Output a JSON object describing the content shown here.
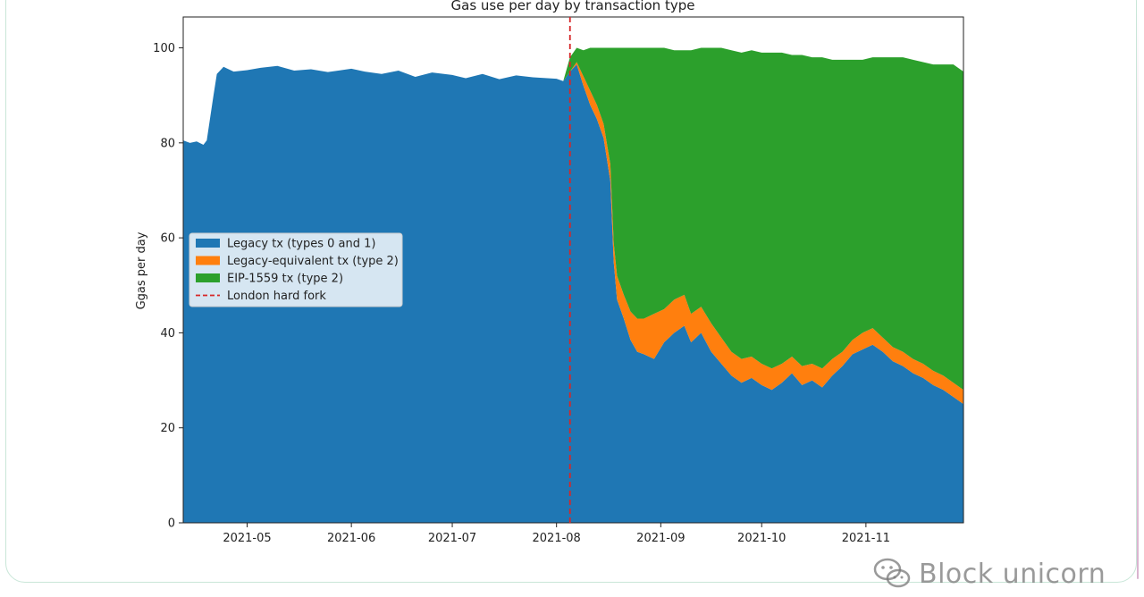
{
  "watermark": {
    "text": "Block unicorn",
    "icon": "wechat-icon"
  },
  "chart_data": {
    "type": "area",
    "title": "Gas use per day by transaction type",
    "xlabel": "",
    "ylabel": "Ggas per day",
    "xlim": [
      "2021-04-12",
      "2021-11-30"
    ],
    "ylim": [
      0,
      106.5
    ],
    "y_ticks": [
      0,
      20,
      40,
      60,
      80,
      100
    ],
    "x_ticks": [
      "2021-05",
      "2021-06",
      "2021-07",
      "2021-08",
      "2021-09",
      "2021-10",
      "2021-11"
    ],
    "stacked": true,
    "legend_position": "left",
    "grid": false,
    "colors": {
      "legacy": "#1f77b4",
      "legacy_equivalent": "#ff7f0e",
      "eip1559": "#2ca02c",
      "fork_line": "#d62728"
    },
    "series": [
      {
        "name": "Legacy tx (types 0 and 1)",
        "color": "#1f77b4",
        "points": [
          [
            "2021-04-12",
            80.5
          ],
          [
            "2021-04-14",
            80.0
          ],
          [
            "2021-04-16",
            80.3
          ],
          [
            "2021-04-18",
            79.6
          ],
          [
            "2021-04-19",
            80.5
          ],
          [
            "2021-04-21",
            90.0
          ],
          [
            "2021-04-22",
            94.5
          ],
          [
            "2021-04-24",
            96.0
          ],
          [
            "2021-04-27",
            95.0
          ],
          [
            "2021-05-01",
            95.3
          ],
          [
            "2021-05-05",
            95.8
          ],
          [
            "2021-05-10",
            96.2
          ],
          [
            "2021-05-15",
            95.2
          ],
          [
            "2021-05-20",
            95.5
          ],
          [
            "2021-05-25",
            94.9
          ],
          [
            "2021-06-01",
            95.6
          ],
          [
            "2021-06-05",
            95.0
          ],
          [
            "2021-06-10",
            94.5
          ],
          [
            "2021-06-15",
            95.2
          ],
          [
            "2021-06-20",
            93.9
          ],
          [
            "2021-06-25",
            94.8
          ],
          [
            "2021-07-01",
            94.3
          ],
          [
            "2021-07-05",
            93.6
          ],
          [
            "2021-07-10",
            94.5
          ],
          [
            "2021-07-15",
            93.4
          ],
          [
            "2021-07-20",
            94.2
          ],
          [
            "2021-07-25",
            93.8
          ],
          [
            "2021-08-01",
            93.5
          ],
          [
            "2021-08-03",
            93.0
          ],
          [
            "2021-08-05",
            95.0
          ],
          [
            "2021-08-07",
            96.5
          ],
          [
            "2021-08-09",
            92.0
          ],
          [
            "2021-08-11",
            88.0
          ],
          [
            "2021-08-13",
            85.0
          ],
          [
            "2021-08-15",
            81.0
          ],
          [
            "2021-08-17",
            72.0
          ],
          [
            "2021-08-18",
            55.0
          ],
          [
            "2021-08-19",
            47.0
          ],
          [
            "2021-08-21",
            43.0
          ],
          [
            "2021-08-23",
            38.5
          ],
          [
            "2021-08-25",
            36.0
          ],
          [
            "2021-08-27",
            35.5
          ],
          [
            "2021-08-30",
            34.5
          ],
          [
            "2021-09-02",
            38.0
          ],
          [
            "2021-09-05",
            40.0
          ],
          [
            "2021-09-08",
            41.5
          ],
          [
            "2021-09-10",
            38.0
          ],
          [
            "2021-09-13",
            40.0
          ],
          [
            "2021-09-16",
            36.0
          ],
          [
            "2021-09-19",
            33.5
          ],
          [
            "2021-09-22",
            31.0
          ],
          [
            "2021-09-25",
            29.5
          ],
          [
            "2021-09-28",
            30.5
          ],
          [
            "2021-10-01",
            29.0
          ],
          [
            "2021-10-04",
            28.0
          ],
          [
            "2021-10-07",
            29.5
          ],
          [
            "2021-10-10",
            31.5
          ],
          [
            "2021-10-13",
            29.0
          ],
          [
            "2021-10-16",
            30.0
          ],
          [
            "2021-10-19",
            28.5
          ],
          [
            "2021-10-22",
            31.0
          ],
          [
            "2021-10-25",
            33.0
          ],
          [
            "2021-10-28",
            35.5
          ],
          [
            "2021-10-31",
            36.5
          ],
          [
            "2021-11-03",
            37.5
          ],
          [
            "2021-11-06",
            36.0
          ],
          [
            "2021-11-09",
            34.0
          ],
          [
            "2021-11-12",
            33.0
          ],
          [
            "2021-11-15",
            31.5
          ],
          [
            "2021-11-18",
            30.5
          ],
          [
            "2021-11-21",
            29.0
          ],
          [
            "2021-11-24",
            28.0
          ],
          [
            "2021-11-27",
            26.5
          ],
          [
            "2021-11-30",
            25.0
          ]
        ]
      },
      {
        "name": "Legacy-equivalent tx (type 2)",
        "color": "#ff7f0e",
        "points": [
          [
            "2021-08-05",
            0.0
          ],
          [
            "2021-08-07",
            0.5
          ],
          [
            "2021-08-09",
            2.0
          ],
          [
            "2021-08-11",
            3.0
          ],
          [
            "2021-08-13",
            3.0
          ],
          [
            "2021-08-15",
            3.0
          ],
          [
            "2021-08-17",
            3.5
          ],
          [
            "2021-08-18",
            4.0
          ],
          [
            "2021-08-19",
            5.0
          ],
          [
            "2021-08-21",
            5.0
          ],
          [
            "2021-08-23",
            6.0
          ],
          [
            "2021-08-25",
            7.0
          ],
          [
            "2021-08-27",
            7.5
          ],
          [
            "2021-08-30",
            9.5
          ],
          [
            "2021-09-02",
            7.0
          ],
          [
            "2021-09-05",
            7.0
          ],
          [
            "2021-09-08",
            6.5
          ],
          [
            "2021-09-10",
            6.0
          ],
          [
            "2021-09-13",
            5.5
          ],
          [
            "2021-09-16",
            6.0
          ],
          [
            "2021-09-19",
            5.5
          ],
          [
            "2021-09-22",
            5.0
          ],
          [
            "2021-09-25",
            5.0
          ],
          [
            "2021-09-28",
            4.5
          ],
          [
            "2021-10-01",
            4.5
          ],
          [
            "2021-10-04",
            4.5
          ],
          [
            "2021-10-07",
            4.0
          ],
          [
            "2021-10-10",
            3.5
          ],
          [
            "2021-10-13",
            4.0
          ],
          [
            "2021-10-16",
            3.5
          ],
          [
            "2021-10-19",
            4.0
          ],
          [
            "2021-10-22",
            3.5
          ],
          [
            "2021-10-25",
            3.0
          ],
          [
            "2021-10-28",
            3.0
          ],
          [
            "2021-10-31",
            3.5
          ],
          [
            "2021-11-03",
            3.5
          ],
          [
            "2021-11-06",
            3.0
          ],
          [
            "2021-11-09",
            3.0
          ],
          [
            "2021-11-12",
            3.0
          ],
          [
            "2021-11-15",
            3.0
          ],
          [
            "2021-11-18",
            3.0
          ],
          [
            "2021-11-21",
            3.0
          ],
          [
            "2021-11-24",
            3.0
          ],
          [
            "2021-11-27",
            3.0
          ],
          [
            "2021-11-30",
            3.0
          ]
        ]
      },
      {
        "name": "EIP-1559 tx (type 2)",
        "color": "#2ca02c",
        "points": [
          [
            "2021-08-05",
            3.0
          ],
          [
            "2021-08-07",
            3.0
          ],
          [
            "2021-08-09",
            5.5
          ],
          [
            "2021-08-11",
            9.0
          ],
          [
            "2021-08-13",
            12.0
          ],
          [
            "2021-08-15",
            16.0
          ],
          [
            "2021-08-17",
            24.5
          ],
          [
            "2021-08-18",
            41.0
          ],
          [
            "2021-08-19",
            48.0
          ],
          [
            "2021-08-21",
            52.0
          ],
          [
            "2021-08-23",
            55.5
          ],
          [
            "2021-08-25",
            57.0
          ],
          [
            "2021-08-27",
            57.0
          ],
          [
            "2021-08-30",
            56.0
          ],
          [
            "2021-09-02",
            55.0
          ],
          [
            "2021-09-05",
            52.5
          ],
          [
            "2021-09-08",
            51.5
          ],
          [
            "2021-09-10",
            55.5
          ],
          [
            "2021-09-13",
            54.5
          ],
          [
            "2021-09-16",
            58.0
          ],
          [
            "2021-09-19",
            61.0
          ],
          [
            "2021-09-22",
            63.5
          ],
          [
            "2021-09-25",
            64.5
          ],
          [
            "2021-09-28",
            64.5
          ],
          [
            "2021-10-01",
            65.5
          ],
          [
            "2021-10-04",
            66.5
          ],
          [
            "2021-10-07",
            65.5
          ],
          [
            "2021-10-10",
            63.5
          ],
          [
            "2021-10-13",
            65.5
          ],
          [
            "2021-10-16",
            64.5
          ],
          [
            "2021-10-19",
            65.5
          ],
          [
            "2021-10-22",
            63.0
          ],
          [
            "2021-10-25",
            61.5
          ],
          [
            "2021-10-28",
            59.0
          ],
          [
            "2021-10-31",
            57.5
          ],
          [
            "2021-11-03",
            57.0
          ],
          [
            "2021-11-06",
            59.0
          ],
          [
            "2021-11-09",
            61.0
          ],
          [
            "2021-11-12",
            62.0
          ],
          [
            "2021-11-15",
            63.0
          ],
          [
            "2021-11-18",
            63.5
          ],
          [
            "2021-11-21",
            64.5
          ],
          [
            "2021-11-24",
            65.5
          ],
          [
            "2021-11-27",
            67.0
          ],
          [
            "2021-11-30",
            67.0
          ]
        ]
      }
    ],
    "annotations": [
      {
        "type": "vline",
        "x": "2021-08-05",
        "label": "London hard fork",
        "style": "dashed",
        "color": "#d62728"
      }
    ]
  }
}
